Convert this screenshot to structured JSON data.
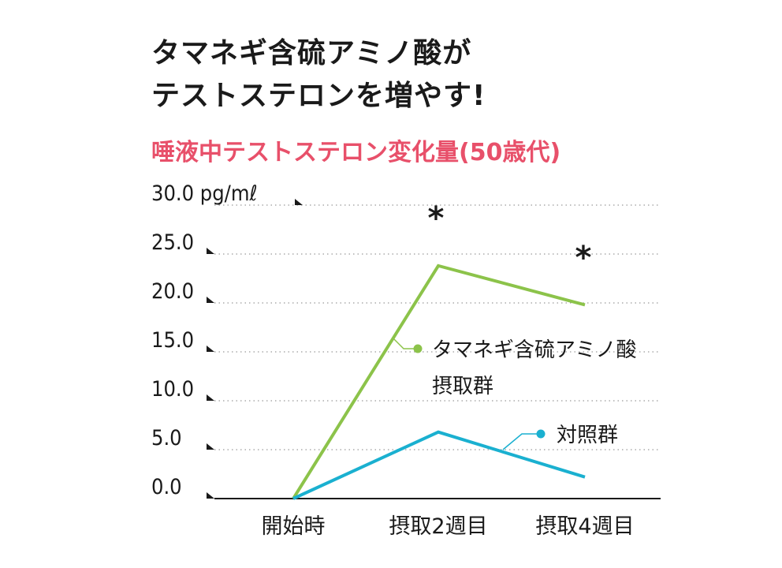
{
  "header": {
    "title_line1": "タマネギ含硫アミノ酸が",
    "title_line2": "テストステロンを増やす!",
    "subtitle": "唾液中テストステロン変化量(50歳代)"
  },
  "colors": {
    "subtitle": "#e8506a",
    "onion_series": "#8cc34a",
    "control_series": "#1ab0d0",
    "axis": "#1a1a1a",
    "grid": "#9a9a9a"
  },
  "chart_data": {
    "type": "line",
    "title": "唾液中テストステロン変化量(50歳代)",
    "categories": [
      "開始時",
      "摂取2週目",
      "摂取4週目"
    ],
    "ylim": [
      0,
      30
    ],
    "yticks": [
      0,
      5,
      10,
      15,
      20,
      25,
      30
    ],
    "ytick_labels": [
      "0.0",
      "5.0",
      "10.0",
      "15.0",
      "20.0",
      "25.0",
      "30.0 pg/mℓ"
    ],
    "grid": "dotted horizontal",
    "series": [
      {
        "name": "タマネギ含硫アミノ酸摂取群",
        "label_lines": [
          "タマネギ含硫アミノ酸",
          "摂取群"
        ],
        "values": [
          0,
          23.8,
          19.8
        ],
        "color": "#8cc34a"
      },
      {
        "name": "対照群",
        "label_lines": [
          "対照群"
        ],
        "values": [
          0,
          6.8,
          2.2
        ],
        "color": "#1ab0d0"
      }
    ],
    "annotations": [
      "*",
      "*"
    ]
  }
}
